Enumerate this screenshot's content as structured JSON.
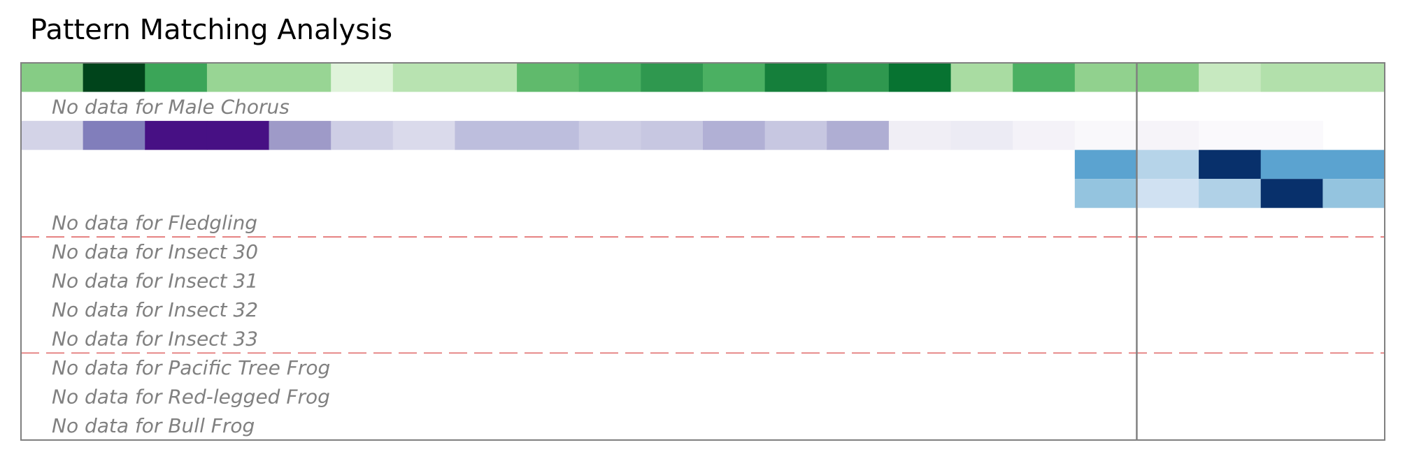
{
  "chart_data": {
    "type": "heatmap",
    "title": "Pattern Matching Analysis",
    "colors": {
      "no_data_text": "#808080",
      "frame": "#808080",
      "separator": "#e06666"
    },
    "rows": [
      {
        "name": "",
        "palette": "Greens",
        "values": [
          0.45,
          1.0,
          0.65,
          0.4,
          0.4,
          0.15,
          0.3,
          0.3,
          0.55,
          0.6,
          0.7,
          0.6,
          0.8,
          0.7,
          0.85,
          0.35,
          0.6,
          0.42,
          0.45,
          0.25,
          0.32,
          0.32
        ]
      },
      {
        "name": "Male Chorus",
        "no_data_text": "No data for Male Chorus"
      },
      {
        "name": "",
        "palette": "Purples",
        "values": [
          0.28,
          0.62,
          0.95,
          0.95,
          0.5,
          0.3,
          0.25,
          0.37,
          0.37,
          0.3,
          0.33,
          0.42,
          0.33,
          0.43,
          0.12,
          0.14,
          0.08,
          0.03,
          0.06,
          0.02,
          0.02,
          null
        ]
      },
      {
        "name": "",
        "palette": "Blues",
        "values": [
          null,
          null,
          null,
          null,
          null,
          null,
          null,
          null,
          null,
          null,
          null,
          null,
          null,
          null,
          null,
          null,
          null,
          0.55,
          0.3,
          1.0,
          0.55,
          0.55
        ]
      },
      {
        "name": "",
        "palette": "Blues",
        "values": [
          null,
          null,
          null,
          null,
          null,
          null,
          null,
          null,
          null,
          null,
          null,
          null,
          null,
          null,
          null,
          null,
          null,
          0.4,
          0.2,
          0.32,
          1.0,
          0.4
        ]
      },
      {
        "name": "Fledgling",
        "no_data_text": "No data for Fledgling"
      },
      {
        "name": "Insect 30",
        "no_data_text": "No data for Insect 30"
      },
      {
        "name": "Insect 31",
        "no_data_text": "No data for Insect 31"
      },
      {
        "name": "Insect 32",
        "no_data_text": "No data for Insect 32"
      },
      {
        "name": "Insect 33",
        "no_data_text": "No data for Insect 33"
      },
      {
        "name": "Pacific Tree Frog",
        "no_data_text": "No data for Pacific Tree Frog"
      },
      {
        "name": "Red-legged Frog",
        "no_data_text": "No data for Red-legged Frog"
      },
      {
        "name": "Bull Frog",
        "no_data_text": "No data for Bull Frog"
      }
    ],
    "n_columns": 22,
    "separator_after_rows": [
      5,
      9
    ],
    "vertical_marker_after_column": 17,
    "grid": false,
    "legend": "none"
  }
}
